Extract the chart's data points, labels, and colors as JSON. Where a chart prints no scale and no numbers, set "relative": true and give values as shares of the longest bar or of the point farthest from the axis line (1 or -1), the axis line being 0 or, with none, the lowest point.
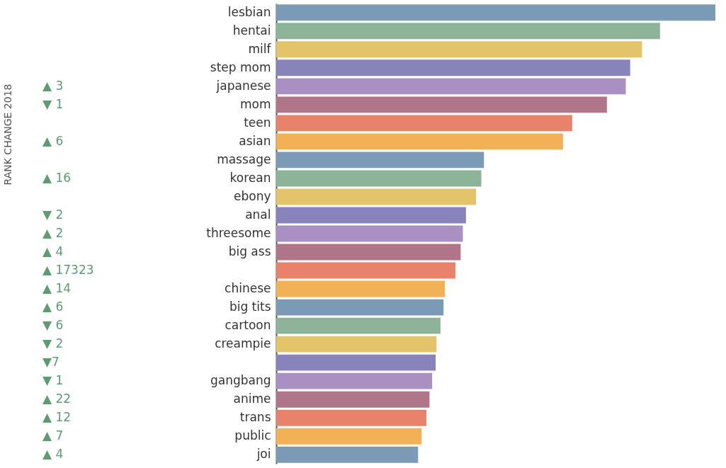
{
  "chart_data": {
    "type": "bar",
    "orientation": "horizontal",
    "relative": true,
    "categories": [
      "lesbian",
      "hentai",
      "milf",
      "step mom",
      "japanese",
      "mom",
      "teen",
      "asian",
      "massage",
      "korean",
      "ebony",
      "anal",
      "threesome",
      "big ass",
      null,
      "chinese",
      "big tits",
      "cartoon",
      "creampie",
      null,
      "gangbang",
      "anime",
      "trans",
      "public",
      "joi"
    ],
    "values": [
      1,
      0.874,
      0.833,
      0.806,
      0.796,
      0.753,
      0.674,
      0.653,
      0.473,
      0.467,
      0.455,
      0.432,
      0.425,
      0.42,
      0.408,
      0.384,
      0.381,
      0.374,
      0.365,
      0.363,
      0.355,
      0.349,
      0.342,
      0.331,
      0.323
    ],
    "colors": [
      "#7b9ab5",
      "#8db398",
      "#e3c46a",
      "#8884bb",
      "#a98fc2",
      "#b07588",
      "#e8826a",
      "#f2b057",
      "#7b9ab5",
      "#8db398",
      "#e3c46a",
      "#8884bb",
      "#a98fc2",
      "#b07588",
      "#e8826a",
      "#f2b057",
      "#7b9ab5",
      "#8db398",
      "#e3c46a",
      "#8884bb",
      "#a98fc2",
      "#b07588",
      "#e8826a",
      "#f2b057",
      "#7b9ab5"
    ],
    "annotations": [
      "RANK CHANGE 2018",
      null,
      null,
      null,
      null,
      "▲ 3",
      "▼ 1",
      null,
      "▲ 6",
      null,
      "▲ 16",
      null,
      "▼ 2",
      "▲ 2",
      "▲ 4",
      "▲ 17323",
      "▲ 14",
      "▲ 6",
      "▼ 6",
      "▼ 2",
      "▼7",
      "▼ 1",
      "▲ 22",
      "▲ 12",
      "▲ 7",
      "▲ 4"
    ],
    "grid": false
  }
}
